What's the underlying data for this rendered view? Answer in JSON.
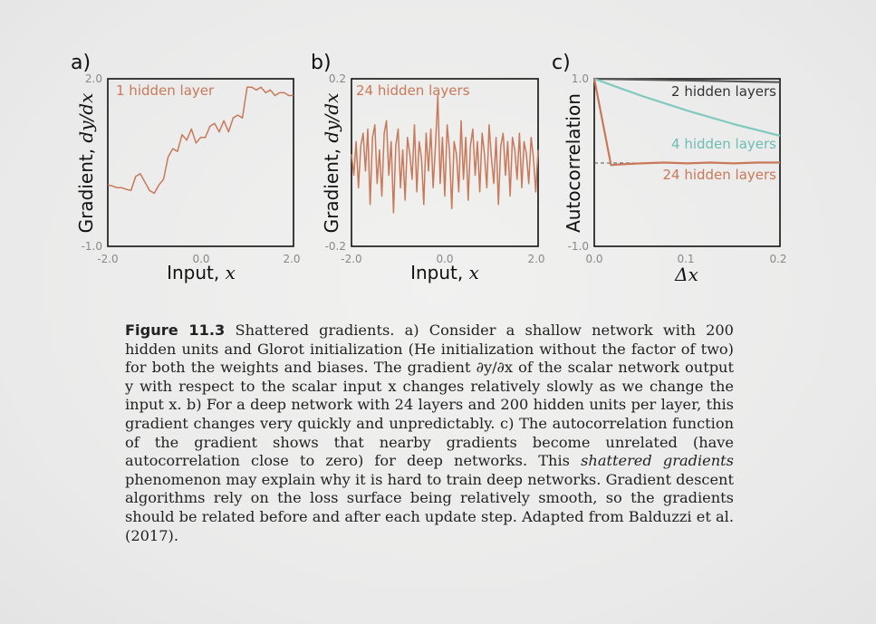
{
  "figure": {
    "panels": [
      {
        "letter": "a)",
        "ylabel_prefix": "Gradient, ",
        "ylabel_math": "dy/dx",
        "xlabel_prefix": "Input, ",
        "xlabel_math": "x",
        "yticks": [
          "2.0",
          "-1.0"
        ],
        "xticks": [
          "-2.0",
          "0.0",
          "2.0"
        ],
        "series_label": "1 hidden layer"
      },
      {
        "letter": "b)",
        "ylabel_prefix": "Gradient, ",
        "ylabel_math": "dy/dx",
        "xlabel_prefix": "Input, ",
        "xlabel_math": "x",
        "yticks": [
          "0.2",
          "-0.2"
        ],
        "xticks": [
          "-2.0",
          "0.0",
          "2.0"
        ],
        "series_label": "24 hidden layers"
      },
      {
        "letter": "c)",
        "ylabel_prefix": "Autocorrelation",
        "ylabel_math": "",
        "xlabel_prefix": "",
        "xlabel_math": "Δx",
        "yticks": [
          "1.0",
          "-1.0"
        ],
        "xticks": [
          "0.0",
          "0.1",
          "0.2"
        ],
        "series_labels": [
          "2 hidden layers",
          "4 hidden layers",
          "24 hidden layers"
        ]
      }
    ]
  },
  "chart_data": [
    {
      "type": "line",
      "xlim": [
        -2.0,
        2.0
      ],
      "ylim": [
        -1.0,
        2.0
      ],
      "series": [
        {
          "name": "1 hidden layer",
          "color": "#c8795a",
          "x": [
            -2.0,
            -1.9,
            -1.8,
            -1.7,
            -1.6,
            -1.5,
            -1.4,
            -1.3,
            -1.2,
            -1.1,
            -1.0,
            -0.9,
            -0.8,
            -0.7,
            -0.6,
            -0.5,
            -0.4,
            -0.3,
            -0.2,
            -0.1,
            0.0,
            0.1,
            0.2,
            0.3,
            0.4,
            0.5,
            0.6,
            0.7,
            0.8,
            0.9,
            1.0,
            1.1,
            1.2,
            1.3,
            1.4,
            1.5,
            1.6,
            1.7,
            1.8,
            1.9,
            2.0
          ],
          "values": [
            0.1,
            0.08,
            0.05,
            0.05,
            0.02,
            0.0,
            0.25,
            0.3,
            0.15,
            0.0,
            -0.05,
            0.1,
            0.2,
            0.6,
            0.75,
            0.7,
            1.0,
            0.9,
            1.1,
            0.85,
            0.95,
            0.95,
            1.15,
            1.2,
            1.05,
            1.25,
            1.05,
            1.3,
            1.35,
            1.3,
            1.85,
            1.85,
            1.8,
            1.85,
            1.75,
            1.8,
            1.7,
            1.75,
            1.75,
            1.7,
            1.7
          ]
        }
      ]
    },
    {
      "type": "line",
      "xlim": [
        -2.0,
        2.0
      ],
      "ylim": [
        -0.2,
        0.2
      ],
      "series": [
        {
          "name": "24 hidden layers",
          "color": "#c8795a",
          "x": [
            -2.0,
            -1.95,
            -1.9,
            -1.85,
            -1.8,
            -1.75,
            -1.7,
            -1.65,
            -1.6,
            -1.55,
            -1.5,
            -1.45,
            -1.4,
            -1.35,
            -1.3,
            -1.25,
            -1.2,
            -1.15,
            -1.1,
            -1.05,
            -1.0,
            -0.95,
            -0.9,
            -0.85,
            -0.8,
            -0.75,
            -0.7,
            -0.65,
            -0.6,
            -0.55,
            -0.5,
            -0.45,
            -0.4,
            -0.35,
            -0.3,
            -0.25,
            -0.2,
            -0.15,
            -0.1,
            -0.05,
            0.0,
            0.05,
            0.1,
            0.15,
            0.2,
            0.25,
            0.3,
            0.35,
            0.4,
            0.45,
            0.5,
            0.55,
            0.6,
            0.65,
            0.7,
            0.75,
            0.8,
            0.85,
            0.9,
            0.95,
            1.0,
            1.05,
            1.1,
            1.15,
            1.2,
            1.25,
            1.3,
            1.35,
            1.4,
            1.45,
            1.5,
            1.55,
            1.6,
            1.65,
            1.7,
            1.75,
            1.8,
            1.85,
            1.9,
            1.95,
            2.0
          ],
          "values": [
            0.02,
            -0.03,
            0.05,
            -0.06,
            0.04,
            0.07,
            -0.02,
            0.08,
            -0.1,
            0.06,
            0.09,
            -0.05,
            0.03,
            -0.08,
            0.07,
            0.1,
            -0.03,
            0.05,
            -0.12,
            0.04,
            0.08,
            -0.06,
            0.03,
            -0.09,
            0.06,
            0.02,
            -0.04,
            0.09,
            -0.07,
            0.05,
            0.01,
            -0.1,
            0.07,
            -0.02,
            0.08,
            -0.06,
            0.04,
            0.16,
            -0.05,
            0.06,
            -0.08,
            0.09,
            0.03,
            -0.11,
            0.05,
            0.02,
            -0.07,
            0.1,
            -0.04,
            0.06,
            -0.09,
            0.04,
            0.08,
            -0.03,
            0.05,
            -0.07,
            0.07,
            0.02,
            -0.06,
            0.09,
            0.01,
            -0.05,
            0.06,
            -0.1,
            0.04,
            0.07,
            -0.03,
            0.05,
            -0.08,
            0.06,
            0.03,
            -0.04,
            0.07,
            -0.06,
            0.05,
            0.02,
            -0.05,
            0.06,
            0.01,
            -0.07,
            0.03
          ]
        }
      ]
    },
    {
      "type": "line",
      "xlim": [
        0.0,
        0.2
      ],
      "ylim": [
        -1.0,
        1.0
      ],
      "reference_line": {
        "y": 0.0,
        "style": "dashed"
      },
      "series": [
        {
          "name": "2 hidden layers",
          "color": "#555555",
          "x": [
            0.0,
            0.05,
            0.1,
            0.15,
            0.2
          ],
          "values": [
            1.0,
            0.99,
            0.98,
            0.97,
            0.96
          ]
        },
        {
          "name": "4 hidden layers",
          "color": "#7fc9bf",
          "x": [
            0.0,
            0.025,
            0.05,
            0.075,
            0.1,
            0.125,
            0.15,
            0.175,
            0.2
          ],
          "values": [
            1.0,
            0.9,
            0.8,
            0.71,
            0.62,
            0.54,
            0.46,
            0.39,
            0.32
          ]
        },
        {
          "name": "24 hidden layers",
          "color": "#c8795a",
          "x": [
            0.0,
            0.018,
            0.03,
            0.05,
            0.075,
            0.1,
            0.125,
            0.15,
            0.175,
            0.2
          ],
          "values": [
            1.0,
            -0.03,
            -0.02,
            -0.01,
            0.0,
            -0.01,
            0.0,
            -0.01,
            0.0,
            0.0
          ]
        }
      ]
    }
  ],
  "caption": {
    "label": "Figure 11.3",
    "text_1": " Shattered gradients. a) Consider a shallow network with 200 hidden units and Glorot initialization (He initialization without the factor of two) for both the weights and biases. The gradient ∂y/∂x of the scalar network output y with respect to the scalar input x changes relatively slowly as we change the input x. b) For a deep network with 24 layers and 200 hidden units per layer, this gradient changes very quickly and unpredictably. c) The autocorrelation function of the gradient shows that nearby gradients become unrelated (have autocorrelation close to zero) for deep networks. This ",
    "italic": "shattered gradients",
    "text_2": " phenomenon may explain why it is hard to train deep networks. Gradient descent algorithms rely on the loss surface being relatively smooth, so the gradients should be related before and after each update step. Adapted from Balduzzi et al. (2017)."
  }
}
